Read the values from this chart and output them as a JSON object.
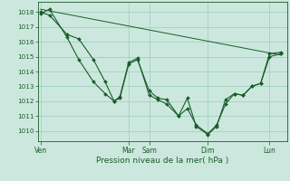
{
  "background_color": "#cce8de",
  "grid_color": "#99ccbb",
  "line_color": "#1a5c2a",
  "ylabel": "Pression niveau de la mer( hPa )",
  "ylim": [
    1009.3,
    1018.7
  ],
  "yticks": [
    1010,
    1011,
    1012,
    1013,
    1014,
    1015,
    1016,
    1017,
    1018
  ],
  "xtick_labels": [
    "Ven",
    "Mar",
    "Sam",
    "Dim",
    "Lun"
  ],
  "xtick_positions": [
    0,
    30,
    37,
    57,
    78
  ],
  "total_points": 85,
  "line1_pts": [
    [
      0,
      1018.0
    ],
    [
      3,
      1017.8
    ],
    [
      9,
      1016.5
    ],
    [
      13,
      1016.2
    ],
    [
      18,
      1014.8
    ],
    [
      22,
      1013.3
    ],
    [
      25,
      1012.0
    ],
    [
      27,
      1012.2
    ],
    [
      30,
      1014.5
    ],
    [
      33,
      1014.8
    ],
    [
      37,
      1012.7
    ],
    [
      40,
      1012.2
    ],
    [
      43,
      1012.1
    ],
    [
      47,
      1011.0
    ],
    [
      50,
      1011.5
    ],
    [
      53,
      1010.4
    ],
    [
      57,
      1009.8
    ],
    [
      60,
      1010.4
    ],
    [
      63,
      1011.8
    ],
    [
      66,
      1012.5
    ],
    [
      69,
      1012.4
    ],
    [
      72,
      1013.0
    ],
    [
      75,
      1013.2
    ],
    [
      78,
      1015.0
    ],
    [
      82,
      1015.2
    ]
  ],
  "line2_pts": [
    [
      0,
      1018.2
    ],
    [
      82,
      1015.1
    ]
  ],
  "line3_pts": [
    [
      0,
      1017.9
    ],
    [
      3,
      1018.2
    ],
    [
      9,
      1016.3
    ],
    [
      13,
      1014.8
    ],
    [
      18,
      1013.3
    ],
    [
      22,
      1012.5
    ],
    [
      25,
      1012.0
    ],
    [
      27,
      1012.3
    ],
    [
      30,
      1014.6
    ],
    [
      33,
      1014.9
    ],
    [
      37,
      1012.4
    ],
    [
      40,
      1012.1
    ],
    [
      43,
      1011.8
    ],
    [
      47,
      1011.0
    ],
    [
      50,
      1012.2
    ],
    [
      53,
      1010.3
    ],
    [
      57,
      1009.75
    ],
    [
      60,
      1010.3
    ],
    [
      63,
      1012.1
    ],
    [
      66,
      1012.5
    ],
    [
      69,
      1012.4
    ],
    [
      72,
      1013.0
    ],
    [
      75,
      1013.2
    ],
    [
      78,
      1015.2
    ],
    [
      82,
      1015.3
    ]
  ]
}
